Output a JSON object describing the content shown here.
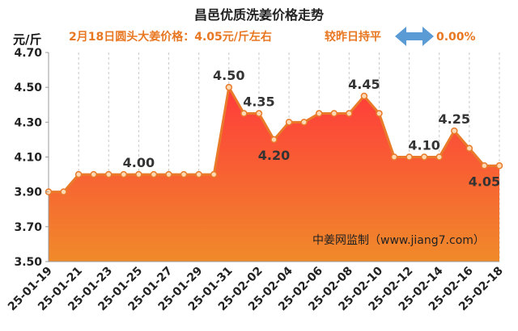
{
  "title": "昌邑优质洗姜价格走势",
  "header": {
    "price_note": "2月18日圆头大姜价格：4.05元/斤左右",
    "change_text": "较昨日持平",
    "change_pct": "0.00%",
    "arrow_icon": "left-right-arrow-icon"
  },
  "watermark": "中姜网监制（www.jiang7.com）",
  "colors": {
    "line": "#e87a2a",
    "fill_top": "#ff3b3b",
    "fill_bottom": "#f08a2a",
    "accent_text": "#e87722",
    "arrow": "#5b9bd5"
  },
  "chart_data": {
    "type": "area",
    "ylabel": "元/斤",
    "ylim": [
      3.5,
      4.7
    ],
    "yticks": [
      "4.70",
      "4.50",
      "4.30",
      "4.10",
      "3.90",
      "3.70",
      "3.50"
    ],
    "x_tick_labels": [
      "25-01-19",
      "25-01-21",
      "25-01-23",
      "25-01-25",
      "25-01-27",
      "25-01-29",
      "25-01-31",
      "25-02-02",
      "25-02-04",
      "25-02-06",
      "25-02-08",
      "25-02-10",
      "25-02-12",
      "25-02-14",
      "25-02-16",
      "25-02-18"
    ],
    "x": [
      "25-01-19",
      "25-01-20",
      "25-01-21",
      "25-01-22",
      "25-01-23",
      "25-01-24",
      "25-01-25",
      "25-01-26",
      "25-01-27",
      "25-01-28",
      "25-01-29",
      "25-01-30",
      "25-01-31",
      "25-02-01",
      "25-02-02",
      "25-02-03",
      "25-02-04",
      "25-02-05",
      "25-02-06",
      "25-02-07",
      "25-02-08",
      "25-02-09",
      "25-02-10",
      "25-02-11",
      "25-02-12",
      "25-02-13",
      "25-02-14",
      "25-02-15",
      "25-02-16",
      "25-02-17",
      "25-02-18"
    ],
    "values": [
      3.9,
      3.9,
      4.0,
      4.0,
      4.0,
      4.0,
      4.0,
      4.0,
      4.0,
      4.0,
      4.0,
      4.0,
      4.5,
      4.35,
      4.35,
      4.2,
      4.3,
      4.3,
      4.35,
      4.35,
      4.35,
      4.45,
      4.35,
      4.1,
      4.1,
      4.1,
      4.1,
      4.25,
      4.15,
      4.05,
      4.05
    ],
    "data_labels": [
      {
        "x": "25-01-25",
        "text": "4.00",
        "pos": "above"
      },
      {
        "x": "25-01-31",
        "text": "4.50",
        "pos": "above"
      },
      {
        "x": "25-02-02",
        "text": "4.35",
        "pos": "above"
      },
      {
        "x": "25-02-03",
        "text": "4.20",
        "pos": "below"
      },
      {
        "x": "25-02-09",
        "text": "4.45",
        "pos": "above"
      },
      {
        "x": "25-02-13",
        "text": "4.10",
        "pos": "above"
      },
      {
        "x": "25-02-15",
        "text": "4.25",
        "pos": "above"
      },
      {
        "x": "25-02-17",
        "text": "4.05",
        "pos": "below"
      }
    ],
    "grid": "x-dashed"
  }
}
